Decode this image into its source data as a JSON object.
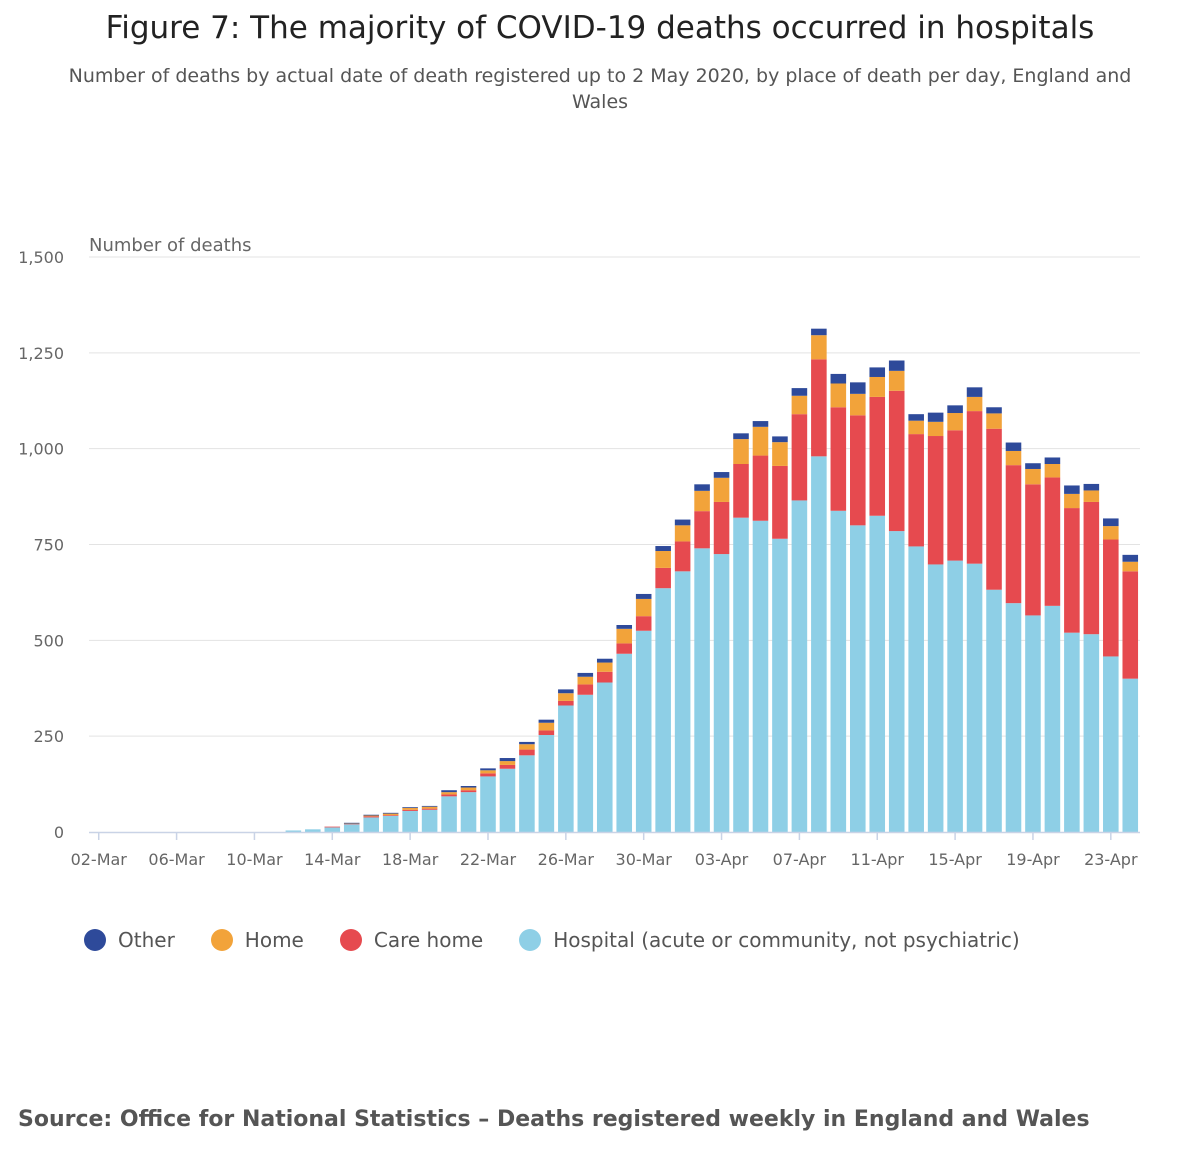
{
  "chart_data": {
    "type": "bar",
    "stacked": true,
    "title": "Figure 7: The majority of COVID-19 deaths occurred in hospitals",
    "subtitle": "Number of deaths by actual date of death registered up to 2 May 2020, by place of death per day, England and Wales",
    "ylabel": "Number of deaths",
    "ylim": [
      0,
      1500
    ],
    "yticks": [
      "0",
      "250",
      "500",
      "750",
      "1,000",
      "1,250",
      "1,500"
    ],
    "ytick_values": [
      0,
      250,
      500,
      750,
      1000,
      1250,
      1500
    ],
    "grid": true,
    "legend_position": "bottom-left",
    "x_tick_labels": [
      "02-Mar",
      "06-Mar",
      "10-Mar",
      "14-Mar",
      "18-Mar",
      "22-Mar",
      "26-Mar",
      "30-Mar",
      "03-Apr",
      "07-Apr",
      "11-Apr",
      "15-Apr",
      "19-Apr",
      "23-Apr"
    ],
    "categories": [
      "02-Mar",
      "03-Mar",
      "04-Mar",
      "05-Mar",
      "06-Mar",
      "07-Mar",
      "08-Mar",
      "09-Mar",
      "10-Mar",
      "11-Mar",
      "12-Mar",
      "13-Mar",
      "14-Mar",
      "15-Mar",
      "16-Mar",
      "17-Mar",
      "18-Mar",
      "19-Mar",
      "20-Mar",
      "21-Mar",
      "22-Mar",
      "23-Mar",
      "24-Mar",
      "25-Mar",
      "26-Mar",
      "27-Mar",
      "28-Mar",
      "29-Mar",
      "30-Mar",
      "31-Mar",
      "01-Apr",
      "02-Apr",
      "03-Apr",
      "04-Apr",
      "05-Apr",
      "06-Apr",
      "07-Apr",
      "08-Apr",
      "09-Apr",
      "10-Apr",
      "11-Apr",
      "12-Apr",
      "13-Apr",
      "14-Apr",
      "15-Apr",
      "16-Apr",
      "17-Apr",
      "18-Apr",
      "19-Apr",
      "20-Apr",
      "21-Apr",
      "22-Apr",
      "23-Apr",
      "24-Apr"
    ],
    "series": [
      {
        "name": "Hospital (acute or community, not psychiatric)",
        "color": "#8ecfe6",
        "values": [
          0,
          0,
          0,
          0,
          0,
          0,
          0,
          0,
          0,
          0,
          4,
          7,
          12,
          20,
          38,
          42,
          55,
          58,
          93,
          104,
          145,
          165,
          200,
          253,
          330,
          358,
          390,
          465,
          525,
          636,
          680,
          740,
          725,
          820,
          812,
          765,
          865,
          980,
          838,
          800,
          825,
          785,
          745,
          698,
          708,
          700,
          632,
          597,
          565,
          590,
          520,
          516,
          458,
          400
        ]
      },
      {
        "name": "Care home",
        "color": "#e64a4f",
        "values": [
          0,
          0,
          0,
          0,
          0,
          0,
          0,
          0,
          0,
          0,
          0,
          0,
          2,
          1,
          3,
          2,
          3,
          3,
          5,
          5,
          8,
          10,
          15,
          12,
          12,
          27,
          28,
          27,
          38,
          53,
          78,
          97,
          136,
          140,
          170,
          190,
          225,
          253,
          270,
          287,
          310,
          366,
          293,
          335,
          340,
          398,
          420,
          360,
          342,
          335,
          325,
          345,
          305,
          280
        ]
      },
      {
        "name": "Home",
        "color": "#f2a33a",
        "values": [
          0,
          0,
          0,
          0,
          0,
          0,
          0,
          0,
          0,
          0,
          0,
          0,
          0,
          1,
          2,
          4,
          5,
          5,
          6,
          7,
          8,
          10,
          14,
          20,
          20,
          20,
          24,
          38,
          45,
          44,
          42,
          53,
          63,
          65,
          75,
          62,
          48,
          63,
          62,
          56,
          52,
          52,
          35,
          37,
          45,
          37,
          40,
          37,
          40,
          35,
          37,
          30,
          35,
          25
        ]
      },
      {
        "name": "Other",
        "color": "#2e4a9a",
        "values": [
          0,
          0,
          0,
          0,
          0,
          0,
          0,
          0,
          0,
          0,
          0,
          0,
          0,
          2,
          2,
          2,
          2,
          2,
          5,
          4,
          5,
          8,
          6,
          8,
          10,
          10,
          10,
          10,
          13,
          13,
          15,
          17,
          15,
          15,
          15,
          15,
          20,
          17,
          25,
          30,
          25,
          27,
          17,
          24,
          20,
          25,
          16,
          22,
          15,
          17,
          22,
          17,
          20,
          18
        ]
      }
    ]
  },
  "legend": {
    "items": [
      {
        "label": "Other",
        "color": "#2e4a9a"
      },
      {
        "label": "Home",
        "color": "#f2a33a"
      },
      {
        "label": "Care home",
        "color": "#e64a4f"
      },
      {
        "label": "Hospital (acute or community, not psychiatric)",
        "color": "#8ecfe6"
      }
    ]
  },
  "source": "Source: Office for National Statistics – Deaths registered weekly in England and Wales"
}
